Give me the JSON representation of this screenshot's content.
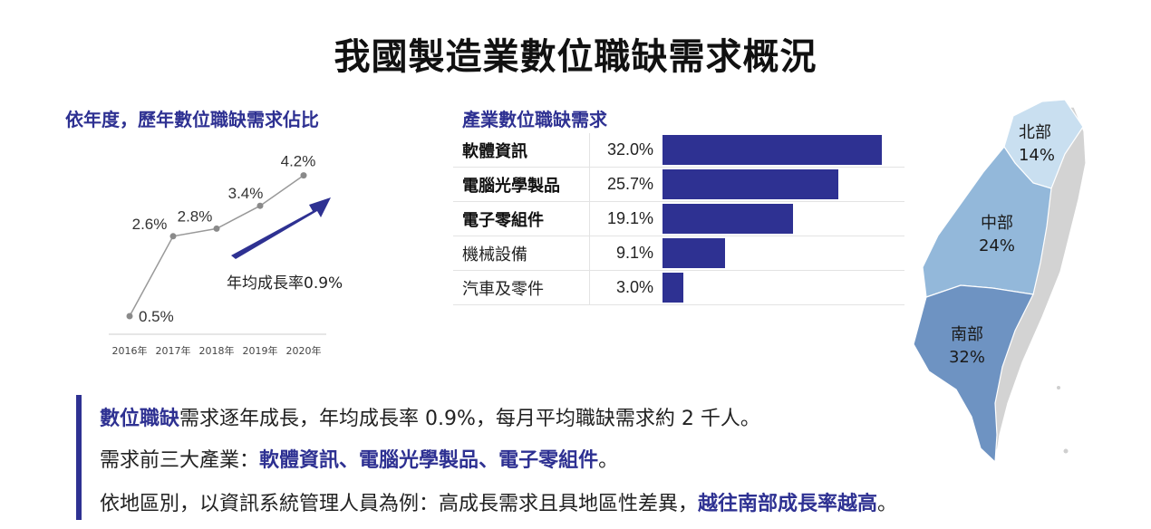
{
  "page_title": "我國製造業數位職缺需求概況",
  "chart_data": [
    {
      "type": "line",
      "title": "依年度，歷年數位職缺需求佔比",
      "categories": [
        "2016年",
        "2017年",
        "2018年",
        "2019年",
        "2020年"
      ],
      "series": [
        {
          "values": [
            0.5,
            2.6,
            2.8,
            3.4,
            4.2
          ]
        }
      ],
      "value_labels": [
        "0.5%",
        "2.6%",
        "2.8%",
        "3.4%",
        "4.2%"
      ],
      "annotation": "年均成長率0.9%",
      "ylim": [
        0,
        5
      ],
      "colors": {
        "line": "#999999",
        "arrow": "#2e3192"
      }
    },
    {
      "type": "bar",
      "title": "產業數位職缺需求",
      "categories": [
        "軟體資訊",
        "電腦光學製品",
        "電子零組件",
        "機械設備",
        "汽車及零件"
      ],
      "values": [
        32.0,
        25.7,
        19.1,
        9.1,
        3.0
      ],
      "value_labels": [
        "32.0%",
        "25.7%",
        "19.1%",
        "9.1%",
        "3.0%"
      ],
      "xlim": [
        0,
        32.0
      ],
      "colors": {
        "bar": "#2e3192"
      }
    },
    {
      "type": "map",
      "regions": [
        {
          "name": "北部",
          "value": "14%",
          "color": "#c9dff0"
        },
        {
          "name": "中部",
          "value": "24%",
          "color": "#93b8da"
        },
        {
          "name": "南部",
          "value": "32%",
          "color": "#6e93c2"
        },
        {
          "name": "",
          "value": "",
          "color": "#d3d3d3"
        }
      ]
    }
  ],
  "notes": {
    "line1": {
      "hl": "數位職缺",
      "rest": "需求逐年成長，年均成長率 0.9%，每月平均職缺需求約 2 千人。"
    },
    "line2": {
      "pre": "需求前三大產業：",
      "hl1": "軟體資訊",
      "sep1": "、",
      "hl2": "電腦光學製品",
      "sep2": "、",
      "hl3": "電子零組件",
      "end": "。"
    },
    "line3": {
      "pre": "依地區別，以資訊系統管理人員為例：高成長需求且具地區性差異，",
      "hl": "越往南部成長率越高",
      "end": "。"
    }
  }
}
